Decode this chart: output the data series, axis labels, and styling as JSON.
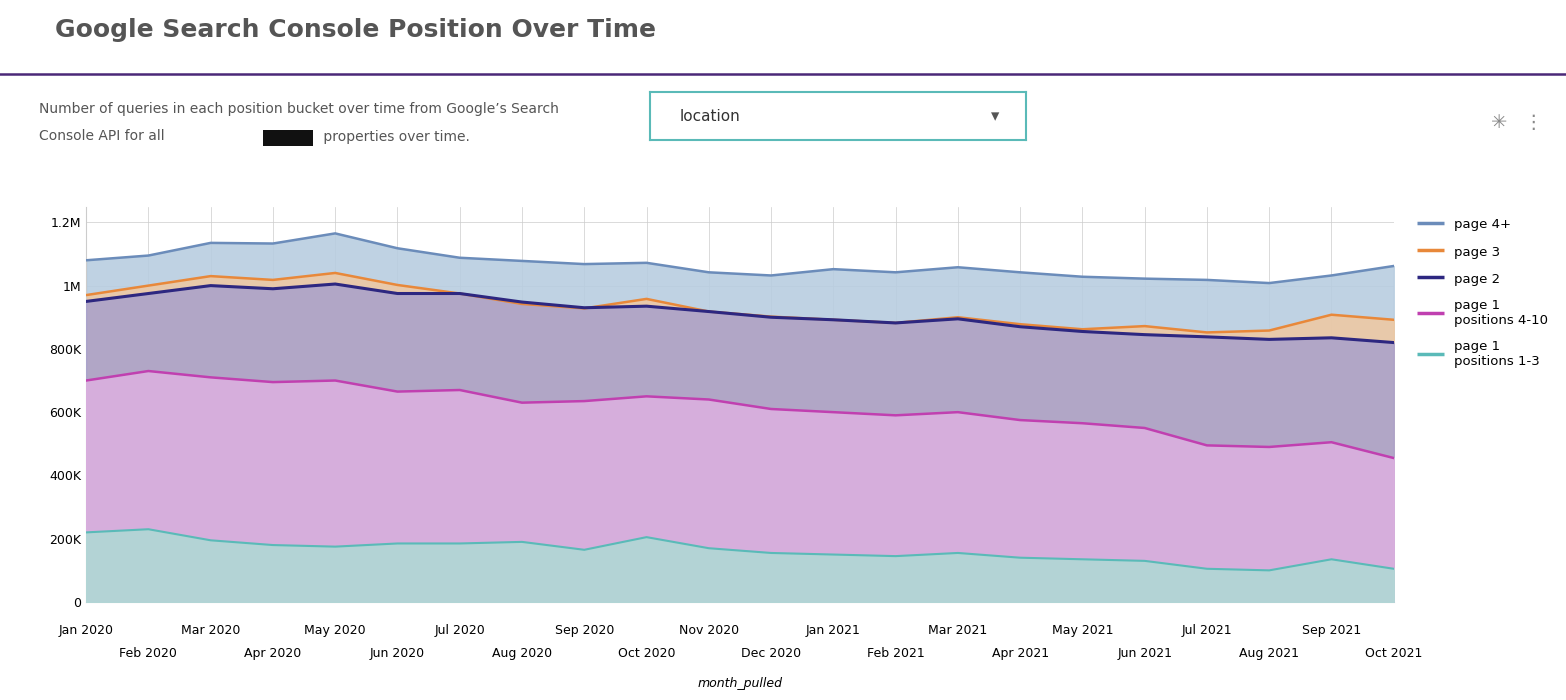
{
  "title": "Google Search Console Position Over Time",
  "subtitle_line1": "Number of queries in each position bucket over time from Google’s Search",
  "subtitle_line2": "Console API for all ■■■■■ properties over time.",
  "xlabel": "month_pulled",
  "dropdown_label": "location",
  "months": [
    "Jan 2020",
    "Feb 2020",
    "Mar 2020",
    "Apr 2020",
    "May 2020",
    "Jun 2020",
    "Jul 2020",
    "Aug 2020",
    "Sep 2020",
    "Oct 2020",
    "Nov 2020",
    "Dec 2020",
    "Jan 2021",
    "Feb 2021",
    "Mar 2021",
    "Apr 2021",
    "May 2021",
    "Jun 2021",
    "Jul 2021",
    "Aug 2021",
    "Sep 2021",
    "Oct 2021"
  ],
  "page1_pos13": [
    220000,
    230000,
    195000,
    180000,
    175000,
    185000,
    185000,
    190000,
    165000,
    205000,
    170000,
    155000,
    150000,
    145000,
    155000,
    140000,
    135000,
    130000,
    105000,
    100000,
    135000,
    105000
  ],
  "page1_pos410": [
    700000,
    730000,
    710000,
    695000,
    700000,
    665000,
    670000,
    630000,
    635000,
    650000,
    640000,
    610000,
    600000,
    590000,
    600000,
    575000,
    565000,
    550000,
    495000,
    490000,
    505000,
    455000
  ],
  "page2": [
    950000,
    975000,
    1000000,
    990000,
    1005000,
    975000,
    975000,
    948000,
    930000,
    935000,
    918000,
    900000,
    892000,
    882000,
    895000,
    870000,
    855000,
    845000,
    838000,
    830000,
    835000,
    820000
  ],
  "page3": [
    970000,
    1000000,
    1030000,
    1018000,
    1040000,
    1002000,
    975000,
    942000,
    928000,
    958000,
    918000,
    902000,
    892000,
    882000,
    900000,
    878000,
    862000,
    872000,
    852000,
    858000,
    908000,
    892000
  ],
  "page4plus": [
    1080000,
    1095000,
    1135000,
    1133000,
    1165000,
    1118000,
    1088000,
    1078000,
    1068000,
    1072000,
    1042000,
    1032000,
    1052000,
    1042000,
    1058000,
    1042000,
    1028000,
    1022000,
    1018000,
    1008000,
    1032000,
    1062000
  ],
  "color_page4plus": "#6b8cba",
  "color_page3": "#e8883a",
  "color_page2": "#2d2780",
  "color_page1_410": "#c040b0",
  "color_page1_13": "#5abab8",
  "fill_page4plus_color": "#b8cde0",
  "fill_page4plus_alpha": 0.9,
  "fill_page3_color": "#f0c8a0",
  "fill_page3_alpha": 0.85,
  "fill_page2_color": "#a8a0cc",
  "fill_page2_alpha": 0.85,
  "fill_page1_410_color": "#ddb0e0",
  "fill_page1_410_alpha": 0.85,
  "fill_page1_13_color": "#b0d8d5",
  "fill_page1_13_alpha": 0.9,
  "title_color": "#555555",
  "title_fontsize": 18,
  "subtitle_fontsize": 10,
  "axis_fontsize": 9,
  "xlabel_fontsize": 9,
  "ylim": [
    0,
    1250000
  ],
  "yticks": [
    0,
    200000,
    400000,
    600000,
    800000,
    1000000,
    1200000
  ],
  "ytick_labels": [
    "0",
    "200K",
    "400K",
    "600K",
    "800K",
    "1M",
    "1.2M"
  ],
  "title_line_color": "#4a2878",
  "grid_color": "#cccccc",
  "background_color": "#ffffff",
  "plot_bg_color": "#ffffff",
  "legend_labels": [
    "page 4+",
    "page 3",
    "page 2",
    "page 1\npositions 4-10",
    "page 1\npositions 1-3"
  ]
}
